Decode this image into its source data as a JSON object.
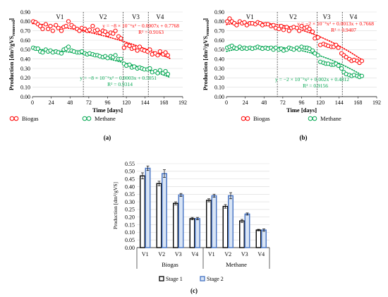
{
  "chart_data": [
    {
      "type": "scatter",
      "caption": "(a)",
      "xlabel": "Time [days]",
      "ylabel": "Production [dm³/gVS",
      "ylabel_sub": "removed",
      "ylabel_end": "]",
      "xlim": [
        0,
        192
      ],
      "ylim": [
        0,
        0.9
      ],
      "xticks": [
        0,
        24,
        48,
        72,
        96,
        120,
        144,
        168,
        192
      ],
      "yticks": [
        0.0,
        0.1,
        0.2,
        0.3,
        0.4,
        0.5,
        0.6,
        0.7,
        0.8,
        0.9
      ],
      "yticklabels": [
        "0.00",
        "0.10",
        "0.20",
        "0.30",
        "0.40",
        "0.50",
        "0.60",
        "0.70",
        "0.80",
        "0.90"
      ],
      "phase_lines": [
        65,
        116,
        148
      ],
      "phases": [
        {
          "label": "V1",
          "x": 35
        },
        {
          "label": "V2",
          "x": 90
        },
        {
          "label": "V3",
          "x": 132
        },
        {
          "label": "V4",
          "x": 163
        }
      ],
      "series": [
        {
          "name": "Biogas",
          "color": "#ff0000",
          "x": [
            1,
            4,
            7,
            10,
            13,
            17,
            20,
            23,
            26,
            30,
            33,
            37,
            40,
            43,
            46,
            50,
            53,
            57,
            60,
            63,
            67,
            70,
            73,
            77,
            80,
            83,
            86,
            90,
            93,
            96,
            100,
            103,
            106,
            110,
            113,
            117,
            120,
            124,
            127,
            130,
            134,
            137,
            140,
            143,
            147,
            150,
            153,
            157,
            160,
            163,
            167,
            170,
            173
          ],
          "y": [
            0.8,
            0.79,
            0.77,
            0.75,
            0.72,
            0.77,
            0.72,
            0.75,
            0.7,
            0.76,
            0.73,
            0.7,
            0.74,
            0.75,
            0.8,
            0.76,
            0.74,
            0.72,
            0.7,
            0.73,
            0.72,
            0.7,
            0.71,
            0.75,
            0.7,
            0.71,
            0.68,
            0.7,
            0.69,
            0.66,
            0.68,
            0.67,
            0.7,
            0.64,
            0.62,
            0.52,
            0.55,
            0.54,
            0.51,
            0.52,
            0.49,
            0.53,
            0.5,
            0.49,
            0.48,
            0.5,
            0.45,
            0.46,
            0.44,
            0.48,
            0.45,
            0.47,
            0.44
          ]
        },
        {
          "name": "Methane",
          "color": "#00a650",
          "x": [
            1,
            4,
            7,
            10,
            13,
            17,
            20,
            23,
            26,
            30,
            33,
            37,
            40,
            43,
            46,
            50,
            53,
            57,
            60,
            63,
            67,
            70,
            73,
            77,
            80,
            83,
            86,
            90,
            93,
            96,
            100,
            103,
            106,
            110,
            113,
            117,
            120,
            124,
            127,
            130,
            134,
            137,
            140,
            143,
            147,
            150,
            153,
            157,
            160,
            163,
            167,
            170,
            173
          ],
          "y": [
            0.52,
            0.51,
            0.51,
            0.48,
            0.47,
            0.5,
            0.48,
            0.49,
            0.47,
            0.48,
            0.47,
            0.46,
            0.5,
            0.51,
            0.53,
            0.49,
            0.48,
            0.47,
            0.47,
            0.48,
            0.46,
            0.45,
            0.46,
            0.45,
            0.44,
            0.44,
            0.43,
            0.42,
            0.43,
            0.41,
            0.43,
            0.42,
            0.44,
            0.4,
            0.4,
            0.35,
            0.33,
            0.34,
            0.31,
            0.32,
            0.3,
            0.31,
            0.3,
            0.29,
            0.29,
            0.3,
            0.26,
            0.27,
            0.25,
            0.28,
            0.25,
            0.27,
            0.24
          ]
        }
      ],
      "trendlines": [
        {
          "series": "Biogas",
          "text": "y = −8 × 10⁻⁶x² − 0.0007x + 0.7768",
          "r2": "R² = 0.9163",
          "coeffs": [
            0.7768,
            -0.0007,
            -8e-06
          ],
          "color": "#ff0000"
        },
        {
          "series": "Methane",
          "text": "y = −8 × 10⁻⁶x² − 0.0003x + 0.5051",
          "r2": "R² = 0.9314",
          "coeffs": [
            0.5051,
            -0.0003,
            -8e-06
          ],
          "color": "#00a650"
        }
      ]
    },
    {
      "type": "scatter",
      "caption": "(b)",
      "xlabel": "Time [days]",
      "ylabel": "Production [dm³/gVS",
      "ylabel_sub": "removed",
      "ylabel_end": "]",
      "xlim": [
        0,
        192
      ],
      "ylim": [
        0,
        0.9
      ],
      "xticks": [
        0,
        24,
        48,
        72,
        96,
        120,
        144,
        168,
        192
      ],
      "yticks": [
        0.0,
        0.1,
        0.2,
        0.3,
        0.4,
        0.5,
        0.6,
        0.7,
        0.8,
        0.9
      ],
      "yticklabels": [
        "0.00",
        "0.10",
        "0.20",
        "0.30",
        "0.40",
        "0.50",
        "0.60",
        "0.70",
        "0.80",
        "0.90"
      ],
      "phase_lines": [
        65,
        116,
        148
      ],
      "phases": [
        {
          "label": "V1",
          "x": 30
        },
        {
          "label": "V2",
          "x": 85
        },
        {
          "label": "V3",
          "x": 128
        },
        {
          "label": "V4",
          "x": 162
        }
      ],
      "series": [
        {
          "name": "Biogas",
          "color": "#ff0000",
          "x": [
            1,
            4,
            7,
            10,
            13,
            17,
            20,
            23,
            26,
            30,
            33,
            37,
            40,
            43,
            46,
            50,
            53,
            57,
            60,
            63,
            67,
            70,
            73,
            77,
            80,
            83,
            86,
            90,
            93,
            96,
            100,
            103,
            106,
            110,
            113,
            117,
            120,
            124,
            127,
            130,
            134,
            137,
            140,
            143,
            147,
            150,
            153,
            157,
            160,
            163,
            167,
            170,
            173
          ],
          "y": [
            0.8,
            0.83,
            0.8,
            0.78,
            0.76,
            0.8,
            0.78,
            0.79,
            0.76,
            0.78,
            0.78,
            0.77,
            0.79,
            0.78,
            0.76,
            0.77,
            0.77,
            0.75,
            0.76,
            0.73,
            0.72,
            0.75,
            0.71,
            0.74,
            0.7,
            0.73,
            0.74,
            0.73,
            0.7,
            0.75,
            0.73,
            0.74,
            0.72,
            0.69,
            0.62,
            0.63,
            0.55,
            0.56,
            0.55,
            0.54,
            0.53,
            0.53,
            0.55,
            0.52,
            0.46,
            0.44,
            0.42,
            0.4,
            0.38,
            0.39,
            0.38,
            0.36,
            0.38
          ]
        },
        {
          "name": "Methane",
          "color": "#00a650",
          "x": [
            1,
            4,
            7,
            10,
            13,
            17,
            20,
            23,
            26,
            30,
            33,
            37,
            40,
            43,
            46,
            50,
            53,
            57,
            60,
            63,
            67,
            70,
            73,
            77,
            80,
            83,
            86,
            90,
            93,
            96,
            100,
            103,
            106,
            110,
            113,
            117,
            120,
            124,
            127,
            130,
            134,
            137,
            140,
            143,
            147,
            150,
            153,
            157,
            160,
            163,
            167,
            170,
            173
          ],
          "y": [
            0.52,
            0.53,
            0.54,
            0.52,
            0.51,
            0.53,
            0.51,
            0.52,
            0.51,
            0.52,
            0.51,
            0.52,
            0.53,
            0.52,
            0.51,
            0.52,
            0.51,
            0.52,
            0.5,
            0.52,
            0.5,
            0.51,
            0.49,
            0.5,
            0.52,
            0.51,
            0.5,
            0.52,
            0.5,
            0.53,
            0.52,
            0.52,
            0.51,
            0.49,
            0.46,
            0.44,
            0.37,
            0.36,
            0.35,
            0.35,
            0.34,
            0.34,
            0.35,
            0.33,
            0.3,
            0.26,
            0.24,
            0.23,
            0.22,
            0.23,
            0.22,
            0.21,
            0.22
          ]
        }
      ],
      "trendlines": [
        {
          "series": "Biogas",
          "text": "y = −2 × 10⁻⁵x² + 0.0013x + 0.7668",
          "r2": "R² = 0.9407",
          "coeffs": [
            0.7668,
            0.0013,
            -2e-05
          ],
          "color": "#ff0000"
        },
        {
          "series": "Methane",
          "text": "y = −2 × 10⁻⁵x² + 0.002x + 0.4812",
          "r2": "R² = 0.9156",
          "coeffs": [
            0.4812,
            0.002,
            -2e-05
          ],
          "color": "#00a650"
        }
      ]
    },
    {
      "type": "bar",
      "caption": "(c)",
      "ylabel": "Production [dm³/gVS]",
      "ylim": [
        0,
        0.55
      ],
      "yticks": [
        0,
        0.05,
        0.1,
        0.15,
        0.2,
        0.25,
        0.3,
        0.35,
        0.4,
        0.45,
        0.5,
        0.55
      ],
      "yticklabels": [
        "0.00",
        "0.05",
        "0.10",
        "0.15",
        "0.20",
        "0.25",
        "0.30",
        "0.35",
        "0.40",
        "0.45",
        "0.50",
        "0.55"
      ],
      "categories": [
        "V1",
        "V2",
        "V3",
        "V4",
        "V1",
        "V2",
        "V3",
        "V4"
      ],
      "groups": [
        {
          "label": "Biogas",
          "start": 0,
          "end": 4
        },
        {
          "label": "Methane",
          "start": 4,
          "end": 8
        }
      ],
      "series": [
        {
          "name": "Stage 1",
          "fill": "#ffffff",
          "stroke": "#000000",
          "values": [
            0.47,
            0.42,
            0.29,
            0.19,
            0.31,
            0.27,
            0.175,
            0.115
          ],
          "errors": [
            0.02,
            0.015,
            0.01,
            0.008,
            0.01,
            0.012,
            0.01,
            0.005
          ]
        },
        {
          "name": "Stage 2",
          "fill": "#d9e5f5",
          "stroke": "#4472c4",
          "values": [
            0.52,
            0.485,
            0.345,
            0.19,
            0.34,
            0.34,
            0.22,
            0.115
          ],
          "errors": [
            0.015,
            0.025,
            0.01,
            0.008,
            0.01,
            0.02,
            0.007,
            0.008
          ]
        }
      ]
    }
  ]
}
